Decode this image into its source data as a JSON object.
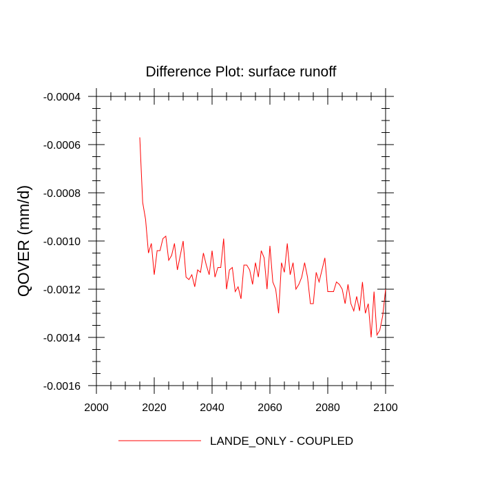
{
  "chart_data": {
    "type": "line",
    "title": "Difference Plot: surface runoff",
    "xlabel": "",
    "ylabel": "QOVER  (mm/d)",
    "xlim": [
      2000,
      2100
    ],
    "ylim": [
      -0.0016,
      -0.0004
    ],
    "x_ticks": [
      2000,
      2020,
      2040,
      2060,
      2080,
      2100
    ],
    "x_tick_labels": [
      "2000",
      "2020",
      "2040",
      "2060",
      "2080",
      "2100"
    ],
    "y_ticks": [
      -0.0016,
      -0.0014,
      -0.0012,
      -0.001,
      -0.0008,
      -0.0006,
      -0.0004
    ],
    "y_tick_labels": [
      "-0.0016",
      "-0.0014",
      "-0.0012",
      "-0.0010",
      "-0.0008",
      "-0.0006",
      "-0.0004"
    ],
    "grid": false,
    "legend_position": "bottom-center",
    "series": [
      {
        "name": "LANDE_ONLY - COUPLED",
        "color": "#ff0000",
        "x": [
          2015,
          2016,
          2017,
          2018,
          2019,
          2020,
          2021,
          2022,
          2023,
          2024,
          2025,
          2026,
          2027,
          2028,
          2029,
          2030,
          2031,
          2032,
          2033,
          2034,
          2035,
          2036,
          2037,
          2038,
          2039,
          2040,
          2041,
          2042,
          2043,
          2044,
          2045,
          2046,
          2047,
          2048,
          2049,
          2050,
          2051,
          2052,
          2053,
          2054,
          2055,
          2056,
          2057,
          2058,
          2059,
          2060,
          2061,
          2062,
          2063,
          2064,
          2065,
          2066,
          2067,
          2068,
          2069,
          2070,
          2071,
          2072,
          2073,
          2074,
          2075,
          2076,
          2077,
          2078,
          2079,
          2080,
          2081,
          2082,
          2083,
          2084,
          2085,
          2086,
          2087,
          2088,
          2089,
          2090,
          2091,
          2092,
          2093,
          2094,
          2095,
          2096,
          2097,
          2098,
          2099,
          2100
        ],
        "y": [
          -0.00057,
          -0.00084,
          -0.00091,
          -0.00105,
          -0.00101,
          -0.00114,
          -0.00104,
          -0.00104,
          -0.00099,
          -0.00098,
          -0.00108,
          -0.00106,
          -0.00101,
          -0.00112,
          -0.00106,
          -0.001,
          -0.00115,
          -0.00116,
          -0.00114,
          -0.00119,
          -0.00112,
          -0.00113,
          -0.00105,
          -0.0011,
          -0.00114,
          -0.00104,
          -0.00115,
          -0.00111,
          -0.00111,
          -0.00099,
          -0.0012,
          -0.00112,
          -0.00111,
          -0.00121,
          -0.00119,
          -0.00124,
          -0.0011,
          -0.0011,
          -0.00112,
          -0.00118,
          -0.00109,
          -0.00115,
          -0.00104,
          -0.00107,
          -0.0012,
          -0.00102,
          -0.00117,
          -0.0012,
          -0.0013,
          -0.00109,
          -0.00113,
          -0.00101,
          -0.00114,
          -0.00109,
          -0.0012,
          -0.00118,
          -0.00115,
          -0.00109,
          -0.00115,
          -0.00126,
          -0.00126,
          -0.00113,
          -0.00117,
          -0.00112,
          -0.00107,
          -0.00121,
          -0.00121,
          -0.00121,
          -0.00117,
          -0.00118,
          -0.0012,
          -0.00126,
          -0.00118,
          -0.00126,
          -0.00129,
          -0.00123,
          -0.00129,
          -0.00117,
          -0.0013,
          -0.00126,
          -0.0014,
          -0.00121,
          -0.00139,
          -0.00137,
          -0.00131,
          -0.0012
        ]
      }
    ]
  }
}
